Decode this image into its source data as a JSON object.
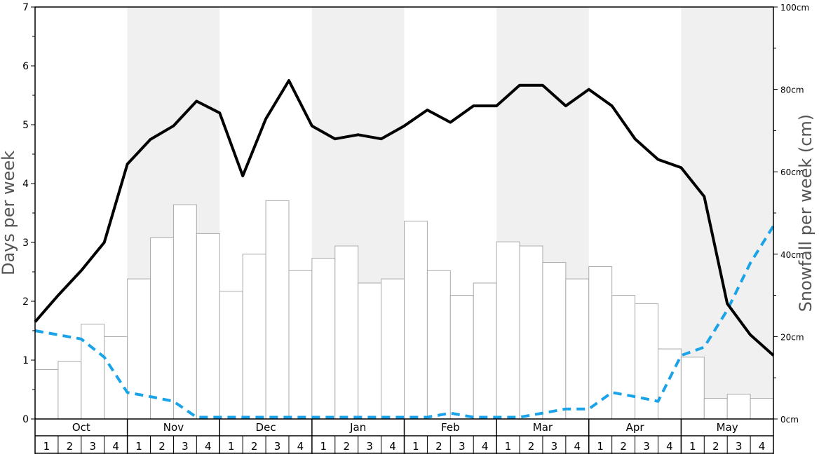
{
  "chart_data": {
    "type": "bar",
    "ylabel": "Days per week",
    "y2label": "Snowfall per week (cm)",
    "ylim": [
      0,
      7
    ],
    "y2lim": [
      0,
      100
    ],
    "yticks": [
      "0",
      "1",
      "2",
      "3",
      "4",
      "5",
      "6",
      "7"
    ],
    "y2ticks": [
      "0cm",
      "20cm",
      "40cm",
      "60cm",
      "80cm",
      "100cm"
    ],
    "months": [
      "Oct",
      "Nov",
      "Dec",
      "Jan",
      "Feb",
      "Mar",
      "Apr",
      "May"
    ],
    "weeks": [
      "1",
      "2",
      "3",
      "4"
    ],
    "shaded_months": [
      "Nov",
      "Jan",
      "Mar",
      "May"
    ],
    "colors": {
      "bars_fill": "#ffffff",
      "bars_stroke": "#aaaaaa",
      "line_solid": "#000000",
      "line_dashed": "#1aa3e8",
      "shade": "#f0f0f0"
    },
    "series": [
      {
        "role": "weekly snowfall bars",
        "axis": "right",
        "style": "bars",
        "values": [
          12,
          14,
          23,
          20,
          34,
          44,
          52,
          45,
          31,
          40,
          53,
          36,
          39,
          42,
          33,
          34,
          48,
          36,
          30,
          33,
          43,
          42,
          38,
          34,
          37,
          30,
          28,
          17,
          15,
          5,
          6,
          5
        ]
      },
      {
        "role": "days per week solid line",
        "axis": "left",
        "style": "solid",
        "values": [
          1.65,
          2.1,
          2.52,
          3.0,
          4.33,
          4.75,
          4.98,
          5.4,
          5.2,
          4.13,
          5.1,
          5.75,
          4.98,
          4.76,
          4.83,
          4.76,
          4.98,
          5.25,
          5.04,
          5.32,
          5.32,
          5.67,
          5.67,
          5.32,
          5.6,
          5.32,
          4.76,
          4.41,
          4.27,
          3.78,
          1.96,
          1.43,
          1.08
        ]
      },
      {
        "role": "days per week dashed line",
        "axis": "left",
        "style": "dashed",
        "values": [
          1.5,
          1.43,
          1.36,
          1.05,
          0.45,
          0.38,
          0.3,
          0.03,
          0.03,
          0.03,
          0.03,
          0.03,
          0.03,
          0.03,
          0.03,
          0.03,
          0.03,
          0.03,
          0.1,
          0.03,
          0.03,
          0.03,
          0.1,
          0.17,
          0.17,
          0.45,
          0.38,
          0.3,
          1.08,
          1.22,
          1.85,
          2.65,
          3.28
        ]
      }
    ]
  }
}
